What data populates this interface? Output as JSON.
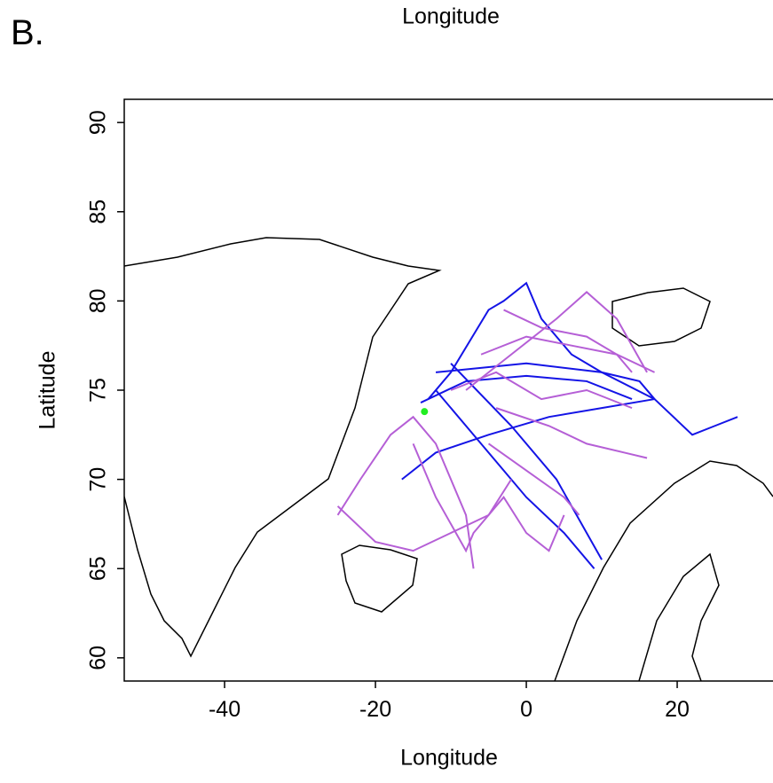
{
  "panel_label": "B.",
  "chart_data": {
    "type": "line",
    "title": "Longitude",
    "xlabel": "Longitude",
    "ylabel": "Latitude",
    "xlim": [
      -53.3,
      32.7
    ],
    "ylim": [
      58.7,
      91.3
    ],
    "xticks": [
      -40,
      -20,
      0,
      20
    ],
    "yticks": [
      60,
      65,
      70,
      75,
      80,
      85,
      90
    ],
    "series": [
      {
        "color": "#1414e6",
        "x": [
          -16.5,
          -12,
          -5,
          3,
          10,
          17
        ],
        "values": [
          70,
          71.5,
          72.5,
          73.5,
          74,
          74.5
        ]
      },
      {
        "color": "#1414e6",
        "x": [
          -13,
          -10,
          -5,
          -3,
          0,
          2,
          6,
          10,
          15,
          17
        ],
        "values": [
          74.5,
          76,
          79.5,
          80,
          81,
          79,
          77,
          76,
          75.5,
          74.5
        ]
      },
      {
        "color": "#1414e6",
        "x": [
          -10,
          -2,
          4,
          8,
          10
        ],
        "values": [
          76.5,
          73,
          70,
          67,
          65.5
        ]
      },
      {
        "color": "#1414e6",
        "x": [
          -12,
          -6,
          0,
          5,
          9
        ],
        "values": [
          75,
          72,
          69,
          67,
          65
        ]
      },
      {
        "color": "#1414e6",
        "x": [
          -12,
          0,
          10,
          17,
          22,
          25,
          28
        ],
        "values": [
          76,
          76.5,
          76,
          74.5,
          72.5,
          73,
          73.5
        ]
      },
      {
        "color": "#1414e6",
        "x": [
          -14,
          -8,
          0,
          8,
          14
        ],
        "values": [
          74.3,
          75.5,
          75.8,
          75.5,
          74.5
        ]
      },
      {
        "color": "#b55fd6",
        "x": [
          -25,
          -22,
          -18,
          -15,
          -12,
          -10,
          -8,
          -7
        ],
        "values": [
          68,
          70,
          72.5,
          73.5,
          72,
          70,
          68,
          65
        ]
      },
      {
        "color": "#b55fd6",
        "x": [
          -25,
          -20,
          -15,
          -10,
          -5,
          -2
        ],
        "values": [
          68.5,
          66.5,
          66,
          67,
          68,
          70
        ]
      },
      {
        "color": "#b55fd6",
        "x": [
          -15,
          -12,
          -8,
          -7,
          -3,
          0,
          3,
          5
        ],
        "values": [
          72,
          69,
          66,
          67,
          69,
          67,
          66,
          68
        ]
      },
      {
        "color": "#b55fd6",
        "x": [
          -8,
          -2,
          4,
          8,
          12,
          16
        ],
        "values": [
          75,
          77,
          79,
          80.5,
          79,
          76
        ]
      },
      {
        "color": "#b55fd6",
        "x": [
          -6,
          0,
          6,
          12,
          17
        ],
        "values": [
          77,
          78,
          77.5,
          77,
          76
        ]
      },
      {
        "color": "#b55fd6",
        "x": [
          -4,
          3,
          8,
          13,
          16
        ],
        "values": [
          74,
          73,
          72,
          71.5,
          71.2
        ]
      },
      {
        "color": "#b55fd6",
        "x": [
          -10,
          -4,
          2,
          8,
          14
        ],
        "values": [
          75,
          76,
          74.5,
          75,
          74
        ]
      },
      {
        "color": "#b55fd6",
        "x": [
          -3,
          2,
          8,
          12,
          14
        ],
        "values": [
          79.5,
          78.5,
          78,
          77,
          76
        ]
      },
      {
        "color": "#b55fd6",
        "x": [
          -5,
          0,
          5,
          7
        ],
        "values": [
          72,
          70.5,
          69,
          68
        ]
      }
    ],
    "points": {
      "color": "#22ee22",
      "x": [
        -13.5
      ],
      "y": [
        73.8
      ]
    }
  }
}
